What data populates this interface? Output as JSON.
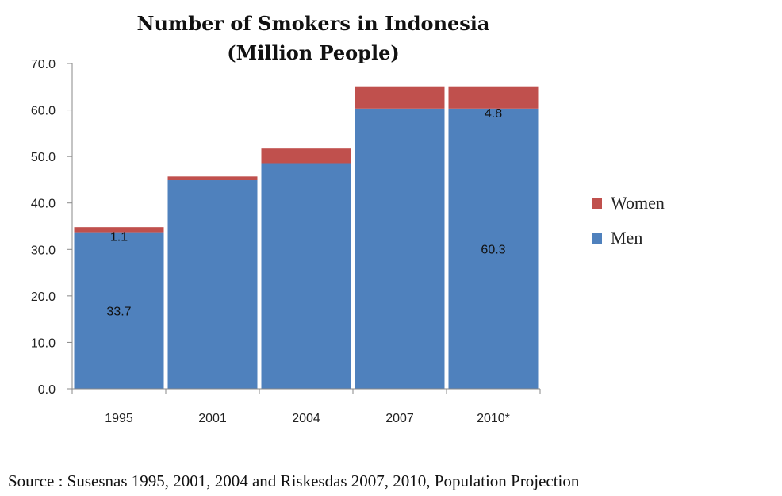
{
  "chart_data": {
    "type": "bar",
    "stacked": true,
    "title_lines": [
      "Number of Smokers in Indonesia",
      "(Million People)"
    ],
    "categories": [
      "1995",
      "2001",
      "2004",
      "2007",
      "2010*"
    ],
    "series": [
      {
        "name": "Men",
        "values": [
          33.7,
          44.9,
          48.4,
          60.3,
          60.3
        ],
        "color": "#4F81BD"
      },
      {
        "name": "Women",
        "values": [
          1.1,
          0.8,
          3.3,
          4.8,
          4.8
        ],
        "color": "#C0504D"
      }
    ],
    "data_labels": [
      {
        "series": "Women",
        "category": "1995",
        "text": "1.1"
      },
      {
        "series": "Men",
        "category": "1995",
        "text": "33.7"
      },
      {
        "series": "Women",
        "category": "2010*",
        "text": "4.8"
      },
      {
        "series": "Men",
        "category": "2010*",
        "text": "60.3"
      }
    ],
    "ylim": [
      0,
      70
    ],
    "yticks": [
      "0.0",
      "10.0",
      "20.0",
      "30.0",
      "40.0",
      "50.0",
      "60.0",
      "70.0"
    ],
    "xlabel": "",
    "ylabel": "",
    "grid": false,
    "legend_position": "right"
  },
  "source_note": "Source : Susesnas 1995, 2001, 2004 and Riskesdas 2007, 2010, Population Projection"
}
